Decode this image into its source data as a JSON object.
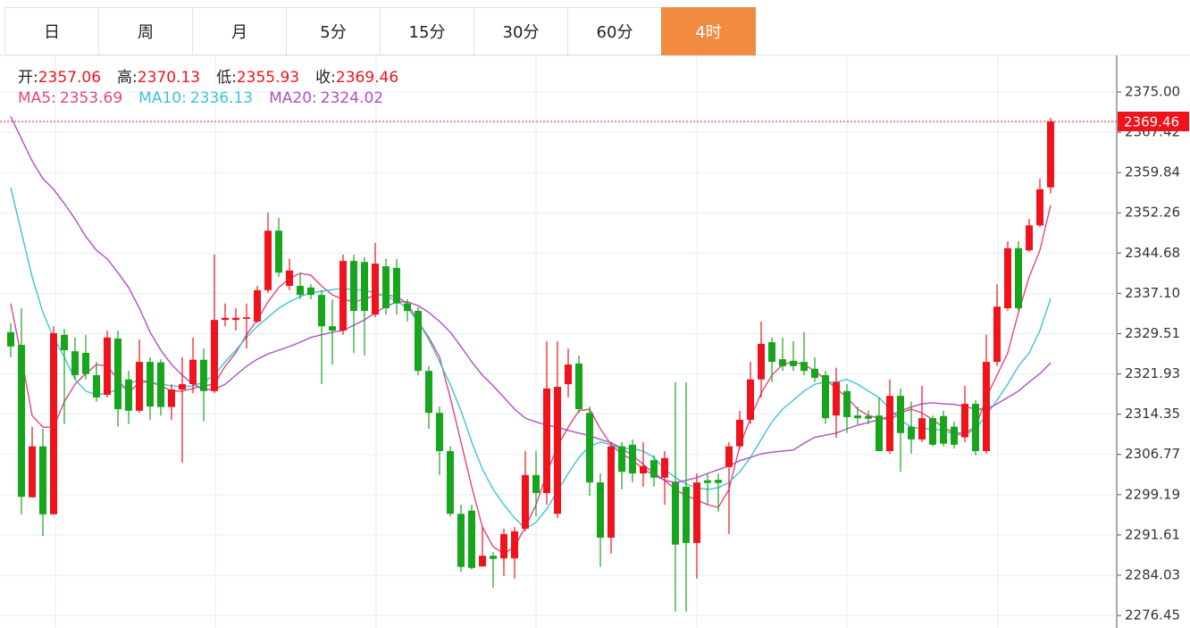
{
  "tabs": [
    "日",
    "周",
    "月",
    "5分",
    "15分",
    "30分",
    "60分",
    "4时"
  ],
  "active_tab": "4时",
  "chart_data": {
    "type": "candlestick",
    "ohlc_labels": [
      "开:",
      "高:",
      "低:",
      "收:"
    ],
    "up_color": "#f0131b",
    "down_color": "#17a51b",
    "ylim": [
      2274.1,
      2381.9
    ],
    "yticks": [
      {
        "value": 2375,
        "label": "2375.00"
      },
      2367.42,
      2359.84,
      2352.26,
      2344.68,
      {
        "value": 2337.1,
        "label": "2337.10"
      },
      2329.51,
      2321.93,
      2314.35,
      2306.77,
      2299.19,
      2291.61,
      2284.03,
      2276.45
    ],
    "grid": true,
    "open": [
      2329.8,
      2327.4,
      2298.7,
      2308.3,
      2295.5,
      2329.3,
      2326.2,
      2325.9,
      2321.7,
      2318.0,
      2328.6,
      2320.9,
      2315.0,
      2324.2,
      2324.1,
      2315.7,
      2319.0,
      2320.0,
      2324.6,
      2318.7,
      2332.1,
      2332.1,
      2332.3,
      2331.8,
      2337.7,
      2348.9,
      2338.5,
      2338.5,
      2338.2,
      2336.8,
      2330.9,
      2330.1,
      2343.2,
      2343.0,
      2333.1,
      2342.2,
      2341.9,
      2335.2,
      2333.8,
      2322.5,
      2314.6,
      2307.4,
      2295.6,
      2296.2,
      2285.7,
      2287.7,
      2287.2,
      2287.2,
      2292.8,
      2302.9,
      2299.5,
      2295.6,
      2320.0,
      2323.9,
      2314.6,
      2301.5,
      2291.1,
      2308.3,
      2308.6,
      2303.2,
      2305.7,
      2302.4,
      2301.5,
      2300.7,
      2290.1,
      2301.9,
      2302.0,
      2304.4,
      2308.3,
      2313.3,
      2320.9,
      2327.9,
      2324.7,
      2324.4,
      2324.2,
      2322.9,
      2321.7,
      2314.1,
      2318.7,
      2314.1,
      2314.0,
      2314.1,
      2307.4,
      2317.8,
      2312.0,
      2309.6,
      2313.6,
      2314.0,
      2312.0,
      2310.0,
      2316.3,
      2307.4,
      2324.2,
      2334.3,
      2345.6,
      2345.2,
      2349.9,
      2357.06
    ],
    "high": [
      2331.5,
      2334.3,
      2312.0,
      2311.6,
      2330.9,
      2330.4,
      2328.8,
      2329.3,
      2324.2,
      2330.1,
      2330.1,
      2322.5,
      2328.4,
      2325.1,
      2324.7,
      2320.0,
      2325.1,
      2328.8,
      2326.7,
      2344.4,
      2335.2,
      2334.3,
      2335.2,
      2338.5,
      2352.3,
      2351.3,
      2343.6,
      2341.0,
      2338.8,
      2337.7,
      2336.0,
      2344.4,
      2344.4,
      2343.9,
      2346.6,
      2343.6,
      2343.6,
      2336.0,
      2334.5,
      2323.4,
      2315.8,
      2308.3,
      2297.3,
      2297.3,
      2293.1,
      2288.4,
      2292.8,
      2293.1,
      2307.4,
      2307.4,
      2328.1,
      2328.1,
      2326.7,
      2325.4,
      2315.8,
      2303.2,
      2309.1,
      2309.1,
      2309.6,
      2309.1,
      2306.6,
      2307.4,
      2320.4,
      2320.4,
      2303.2,
      2303.2,
      2303.2,
      2309.1,
      2315.0,
      2324.2,
      2331.8,
      2328.8,
      2328.8,
      2328.1,
      2329.8,
      2325.1,
      2322.5,
      2323.1,
      2320.0,
      2315.8,
      2315.0,
      2317.5,
      2320.9,
      2319.2,
      2316.7,
      2319.7,
      2314.1,
      2315.0,
      2313.0,
      2319.7,
      2317.0,
      2329.3,
      2338.8,
      2346.9,
      2346.9,
      2351.1,
      2358.7,
      2370.13
    ],
    "low": [
      2325.1,
      2295.5,
      2298.7,
      2291.4,
      2295.5,
      2312.5,
      2320.9,
      2320.9,
      2316.7,
      2317.5,
      2312.0,
      2312.5,
      2314.6,
      2313.3,
      2314.1,
      2313.3,
      2305.2,
      2318.3,
      2313.0,
      2318.3,
      2330.9,
      2330.1,
      2326.7,
      2331.5,
      2337.2,
      2340.2,
      2337.7,
      2336.0,
      2336.0,
      2320.0,
      2323.7,
      2329.3,
      2325.9,
      2325.4,
      2332.6,
      2333.1,
      2333.1,
      2331.8,
      2321.7,
      2311.6,
      2302.9,
      2295.1,
      2284.7,
      2285.1,
      2285.6,
      2281.7,
      2283.9,
      2283.4,
      2292.3,
      2295.1,
      2297.3,
      2294.8,
      2317.5,
      2314.6,
      2299.0,
      2285.6,
      2288.1,
      2300.2,
      2301.5,
      2300.7,
      2300.7,
      2297.3,
      2277.2,
      2277.2,
      2283.4,
      2297.3,
      2296.0,
      2291.8,
      2307.8,
      2312.5,
      2317.5,
      2320.4,
      2322.5,
      2322.5,
      2321.7,
      2320.4,
      2312.5,
      2309.9,
      2310.8,
      2312.5,
      2312.5,
      2307.4,
      2306.9,
      2303.5,
      2306.9,
      2309.1,
      2308.3,
      2308.3,
      2307.9,
      2309.1,
      2306.6,
      2306.9,
      2323.4,
      2333.8,
      2333.8,
      2344.9,
      2349.6,
      2355.93
    ],
    "close": [
      2327.1,
      2298.8,
      2308.3,
      2295.5,
      2329.6,
      2326.4,
      2321.7,
      2321.9,
      2317.5,
      2328.8,
      2315.3,
      2315.0,
      2324.2,
      2315.8,
      2315.7,
      2319.0,
      2320.0,
      2324.6,
      2318.7,
      2332.1,
      2332.5,
      2332.5,
      2332.6,
      2337.7,
      2348.9,
      2341.0,
      2341.4,
      2336.8,
      2336.8,
      2330.9,
      2330.1,
      2343.2,
      2333.8,
      2333.8,
      2342.7,
      2334.3,
      2335.2,
      2333.8,
      2322.5,
      2314.6,
      2307.4,
      2295.6,
      2285.6,
      2285.4,
      2287.7,
      2287.1,
      2291.8,
      2292.3,
      2302.9,
      2299.5,
      2319.2,
      2319.5,
      2323.7,
      2315.3,
      2301.5,
      2291.1,
      2308.3,
      2303.5,
      2303.2,
      2304.6,
      2302.4,
      2306.1,
      2289.8,
      2290.1,
      2301.5,
      2301.4,
      2301.4,
      2308.3,
      2313.3,
      2320.9,
      2327.6,
      2324.2,
      2323.4,
      2323.4,
      2322.5,
      2321.2,
      2313.6,
      2320.4,
      2313.8,
      2313.6,
      2313.5,
      2307.4,
      2317.8,
      2310.8,
      2309.6,
      2313.6,
      2308.6,
      2308.8,
      2308.6,
      2316.3,
      2307.4,
      2324.2,
      2334.6,
      2345.6,
      2334.3,
      2349.9,
      2356.7,
      2369.46
    ],
    "series": [
      {
        "name": "MA5:",
        "color": "#e4457f",
        "values": [
          2335.2,
          2325.1,
          2314.1,
          2311.9,
          2311.9,
          2316.7,
          2320.0,
          2322.0,
          2323.7,
          2323.4,
          2320.9,
          2318.3,
          2320.4,
          2320.4,
          2319.7,
          2318.7,
          2318.7,
          2319.2,
          2319.7,
          2320.0,
          2323.4,
          2325.9,
          2329.3,
          2332.1,
          2335.5,
          2338.2,
          2339.9,
          2340.9,
          2340.5,
          2338.5,
          2336.8,
          2336.0,
          2335.5,
          2336.0,
          2336.8,
          2336.8,
          2336.5,
          2335.2,
          2331.8,
          2328.8,
          2325.1,
          2317.5,
          2309.1,
          2300.7,
          2293.1,
          2289.4,
          2288.1,
          2289.4,
          2293.1,
          2297.3,
          2303.2,
          2308.3,
          2311.9,
          2315.0,
          2315.3,
          2311.6,
          2308.6,
          2306.9,
          2305.7,
          2304.0,
          2302.9,
          2301.9,
          2300.2,
          2299.0,
          2298.2,
          2297.3,
          2296.8,
          2300.2,
          2308.3,
          2313.6,
          2318.3,
          2321.7,
          2323.7,
          2324.2,
          2323.7,
          2322.5,
          2320.9,
          2319.2,
          2317.5,
          2315.3,
          2314.1,
          2313.6,
          2313.3,
          2314.6,
          2315.3,
          2314.6,
          2313.3,
          2311.9,
          2310.8,
          2310.8,
          2311.9,
          2317.5,
          2321.7,
          2325.9,
          2333.5,
          2340.2,
          2345.2,
          2353.69
        ]
      },
      {
        "name": "MA10:",
        "color": "#3cc4d6",
        "values": [
          2357.0,
          2348.6,
          2340.2,
          2333.5,
          2328.8,
          2325.1,
          2320.9,
          2318.7,
          2318.0,
          2318.3,
          2319.0,
          2320.0,
          2320.9,
          2320.4,
          2320.0,
          2319.7,
          2319.5,
          2319.7,
          2320.4,
          2321.7,
          2324.2,
          2326.4,
          2328.8,
          2330.9,
          2332.6,
          2334.3,
          2335.5,
          2336.5,
          2337.2,
          2337.5,
          2337.8,
          2338.0,
          2337.8,
          2337.7,
          2337.2,
          2336.5,
          2335.7,
          2334.3,
          2331.8,
          2328.4,
          2324.2,
          2320.0,
          2315.0,
          2309.1,
          2304.0,
          2300.2,
          2297.3,
          2294.8,
          2292.8,
          2294.0,
          2296.5,
          2299.9,
          2303.2,
          2306.2,
          2308.3,
          2309.1,
          2308.6,
          2307.9,
          2307.9,
          2307.4,
          2306.2,
          2304.0,
          2302.4,
          2301.2,
          2300.5,
          2300.2,
          2300.5,
          2301.5,
          2303.5,
          2306.2,
          2309.6,
          2312.9,
          2315.3,
          2317.0,
          2318.7,
          2320.0,
          2320.4,
          2320.4,
          2320.9,
          2320.0,
          2318.7,
          2317.5,
          2315.3,
          2313.3,
          2311.9,
          2311.6,
          2311.6,
          2311.3,
          2310.6,
          2310.4,
          2311.6,
          2314.1,
          2317.0,
          2320.0,
          2323.4,
          2325.9,
          2330.1,
          2336.13
        ]
      },
      {
        "name": "MA20:",
        "color": "#b04fc6",
        "values": [
          2370.4,
          2366.2,
          2362.0,
          2358.7,
          2356.7,
          2354.0,
          2351.1,
          2347.8,
          2345.2,
          2343.6,
          2341.0,
          2338.2,
          2334.3,
          2329.8,
          2326.4,
          2323.7,
          2321.7,
          2320.0,
          2319.0,
          2319.0,
          2320.0,
          2321.7,
          2323.4,
          2324.7,
          2325.7,
          2326.4,
          2327.1,
          2327.9,
          2328.8,
          2329.3,
          2329.8,
          2330.1,
          2331.1,
          2332.1,
          2333.5,
          2334.6,
          2335.5,
          2335.5,
          2334.8,
          2333.5,
          2331.8,
          2329.8,
          2327.1,
          2324.2,
          2321.7,
          2319.7,
          2317.5,
          2315.3,
          2313.6,
          2312.9,
          2312.3,
          2311.9,
          2311.3,
          2310.8,
          2310.3,
          2309.6,
          2309.0,
          2307.9,
          2306.6,
          2304.9,
          2303.2,
          2301.9,
          2301.5,
          2301.9,
          2302.4,
          2303.2,
          2303.9,
          2304.6,
          2305.6,
          2306.2,
          2306.9,
          2307.2,
          2307.4,
          2307.6,
          2308.9,
          2310.0,
          2310.4,
          2310.8,
          2311.6,
          2312.3,
          2312.8,
          2313.3,
          2314.0,
          2315.0,
          2315.7,
          2316.3,
          2316.5,
          2316.3,
          2316.2,
          2315.8,
          2315.3,
          2315.3,
          2316.3,
          2317.5,
          2318.7,
          2320.4,
          2322.0,
          2324.02
        ]
      }
    ]
  }
}
